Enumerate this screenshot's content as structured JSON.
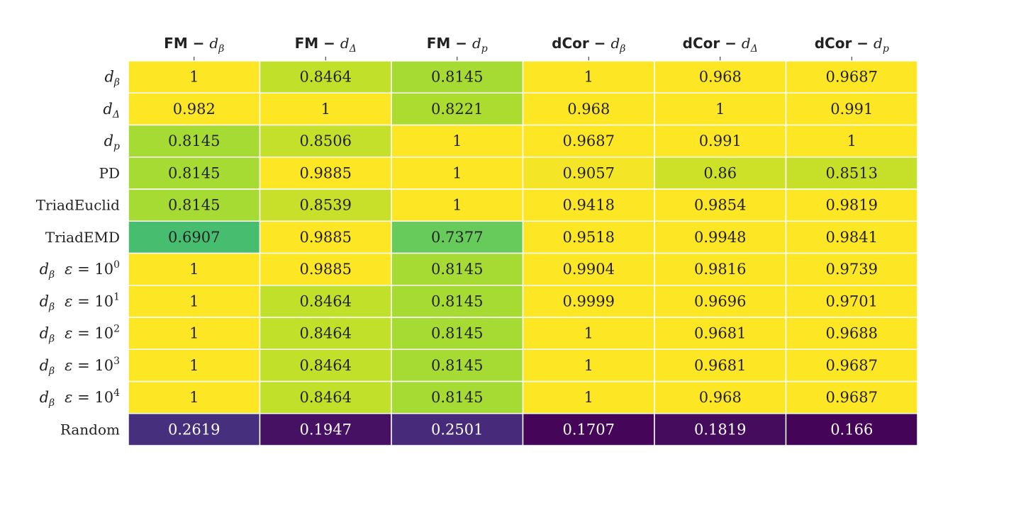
{
  "chart_data": {
    "type": "heatmap",
    "title": "",
    "columns": [
      {
        "prefix": "FM",
        "sep": " − ",
        "var": "d",
        "sub": "β"
      },
      {
        "prefix": "FM",
        "sep": " − ",
        "var": "d",
        "sub": "Δ"
      },
      {
        "prefix": "FM",
        "sep": " − ",
        "var": "d",
        "sub": "p"
      },
      {
        "prefix": "dCor",
        "sep": " − ",
        "var": "d",
        "sub": "β"
      },
      {
        "prefix": "dCor",
        "sep": " − ",
        "var": "d",
        "sub": "Δ"
      },
      {
        "prefix": "dCor",
        "sep": " − ",
        "var": "d",
        "sub": "p"
      }
    ],
    "rows": [
      {
        "kind": "math",
        "var": "d",
        "sub": "β"
      },
      {
        "kind": "math",
        "var": "d",
        "sub": "Δ"
      },
      {
        "kind": "math",
        "var": "d",
        "sub": "p"
      },
      {
        "kind": "text",
        "text": "PD"
      },
      {
        "kind": "text",
        "text": "TriadEuclid"
      },
      {
        "kind": "text",
        "text": "TriadEMD"
      },
      {
        "kind": "eps",
        "var": "d",
        "sub": "β",
        "eps": "ε",
        "eq": " = 10",
        "exp": "0"
      },
      {
        "kind": "eps",
        "var": "d",
        "sub": "β",
        "eps": "ε",
        "eq": " = 10",
        "exp": "1"
      },
      {
        "kind": "eps",
        "var": "d",
        "sub": "β",
        "eps": "ε",
        "eq": " = 10",
        "exp": "2"
      },
      {
        "kind": "eps",
        "var": "d",
        "sub": "β",
        "eps": "ε",
        "eq": " = 10",
        "exp": "3"
      },
      {
        "kind": "eps",
        "var": "d",
        "sub": "β",
        "eps": "ε",
        "eq": " = 10",
        "exp": "4"
      },
      {
        "kind": "text",
        "text": "Random"
      }
    ],
    "values": [
      [
        "1",
        "0.8464",
        "0.8145",
        "1",
        "0.968",
        "0.9687"
      ],
      [
        "0.982",
        "1",
        "0.8221",
        "0.968",
        "1",
        "0.991"
      ],
      [
        "0.8145",
        "0.8506",
        "1",
        "0.9687",
        "0.991",
        "1"
      ],
      [
        "0.8145",
        "0.9885",
        "1",
        "0.9057",
        "0.86",
        "0.8513"
      ],
      [
        "0.8145",
        "0.8539",
        "1",
        "0.9418",
        "0.9854",
        "0.9819"
      ],
      [
        "0.6907",
        "0.9885",
        "0.7377",
        "0.9518",
        "0.9948",
        "0.9841"
      ],
      [
        "1",
        "0.9885",
        "0.8145",
        "0.9904",
        "0.9816",
        "0.9739"
      ],
      [
        "1",
        "0.8464",
        "0.8145",
        "0.9999",
        "0.9696",
        "0.9701"
      ],
      [
        "1",
        "0.8464",
        "0.8145",
        "1",
        "0.9681",
        "0.9688"
      ],
      [
        "1",
        "0.8464",
        "0.8145",
        "1",
        "0.9681",
        "0.9687"
      ],
      [
        "1",
        "0.8464",
        "0.8145",
        "1",
        "0.968",
        "0.9687"
      ],
      [
        "0.2619",
        "0.1947",
        "0.2501",
        "0.1707",
        "0.1819",
        "0.166"
      ]
    ],
    "colormap": "viridis",
    "vmin": 0.16,
    "vmax": 1.0,
    "grid": true,
    "legend": "none"
  }
}
